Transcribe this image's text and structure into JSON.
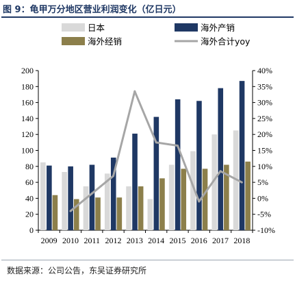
{
  "figure_title": "图 9：龟甲万分地区营业利润变化（亿日元）",
  "source_note": "数据来源：公司公告，东吴证券研究所",
  "colors": {
    "japan": "#d9d9d9",
    "overseas_production": "#1f3864",
    "overseas_distribution": "#8c7f4b",
    "overseas_total_yoy": "#a6a6a6",
    "title": "#1f3864"
  },
  "chart_data": {
    "type": "bar",
    "categories": [
      "2009",
      "2010",
      "2011",
      "2012",
      "2013",
      "2014",
      "2015",
      "2016",
      "2017",
      "2018"
    ],
    "series": [
      {
        "name": "日本",
        "type": "bar",
        "axis": "left",
        "values": [
          85,
          73,
          55,
          71,
          55,
          39,
          82,
          99,
          120,
          125
        ]
      },
      {
        "name": "海外产销",
        "type": "bar",
        "axis": "left",
        "values": [
          81,
          80,
          82,
          91,
          121,
          142,
          164,
          162,
          178,
          187
        ]
      },
      {
        "name": "海外经销",
        "type": "bar",
        "axis": "left",
        "values": [
          44,
          39,
          41,
          41,
          55,
          65,
          77,
          77,
          82,
          86
        ]
      },
      {
        "name": "海外合计yoy",
        "type": "line",
        "axis": "right",
        "unit": "%",
        "values": [
          null,
          -4.0,
          1.5,
          7.0,
          33.5,
          17.5,
          16.5,
          -1.0,
          8.5,
          5.0
        ]
      }
    ],
    "y_left": {
      "min": 0,
      "max": 200,
      "step": 20,
      "ticks": [
        "0",
        "20",
        "40",
        "60",
        "80",
        "100",
        "120",
        "140",
        "160",
        "180",
        "200"
      ]
    },
    "y_right": {
      "min": -10,
      "max": 40,
      "step": 5,
      "ticks": [
        "-10%",
        "-5%",
        "0%",
        "5%",
        "10%",
        "15%",
        "20%",
        "25%",
        "30%",
        "35%",
        "40%"
      ]
    },
    "legend": [
      "日本",
      "海外产销",
      "海外经销",
      "海外合计yoy"
    ],
    "legend_position": "top",
    "grid": false
  }
}
